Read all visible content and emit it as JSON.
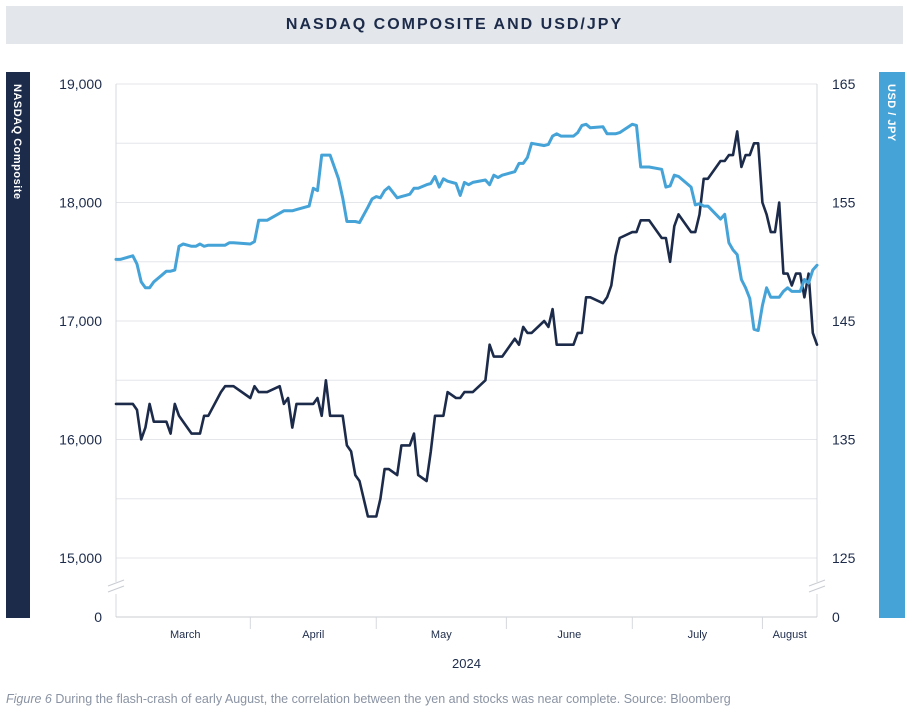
{
  "chart_data": {
    "type": "line",
    "title": "NASDAQ COMPOSITE AND USD/JPY",
    "xlabel": "2024",
    "months": [
      "March",
      "April",
      "May",
      "June",
      "July",
      "August"
    ],
    "y_left": {
      "label": "NASDAQ Composite",
      "range": [
        15000,
        19000
      ],
      "ticks": [
        "19,000",
        "18,000",
        "17,000",
        "16,000",
        "15,000"
      ],
      "tick_values": [
        19000,
        18000,
        17000,
        16000,
        15000
      ],
      "zero_label": "0",
      "axis_break": true
    },
    "y_right": {
      "label": "USD / JPY",
      "range": [
        125,
        165
      ],
      "ticks": [
        "165",
        "155",
        "145",
        "135",
        "125"
      ],
      "tick_values": [
        165,
        155,
        145,
        135,
        125
      ],
      "zero_label": "0",
      "axis_break": true
    },
    "x_range": [
      "2024-02-29",
      "2024-08-14"
    ],
    "grid": true,
    "series": [
      {
        "name": "NASDAQ Composite",
        "axis": "left",
        "color": "#1d2b4a",
        "points": [
          [
            "2024-02-29",
            16300
          ],
          [
            "2024-03-01",
            16300
          ],
          [
            "2024-03-04",
            16300
          ],
          [
            "2024-03-05",
            16250
          ],
          [
            "2024-03-06",
            16000
          ],
          [
            "2024-03-07",
            16100
          ],
          [
            "2024-03-08",
            16300
          ],
          [
            "2024-03-09",
            16150
          ],
          [
            "2024-03-11",
            16150
          ],
          [
            "2024-03-12",
            16150
          ],
          [
            "2024-03-13",
            16050
          ],
          [
            "2024-03-14",
            16300
          ],
          [
            "2024-03-15",
            16200
          ],
          [
            "2024-03-16",
            16150
          ],
          [
            "2024-03-18",
            16050
          ],
          [
            "2024-03-19",
            16050
          ],
          [
            "2024-03-20",
            16050
          ],
          [
            "2024-03-21",
            16200
          ],
          [
            "2024-03-22",
            16200
          ],
          [
            "2024-03-25",
            16400
          ],
          [
            "2024-03-26",
            16450
          ],
          [
            "2024-03-27",
            16450
          ],
          [
            "2024-03-28",
            16450
          ],
          [
            "2024-04-01",
            16350
          ],
          [
            "2024-04-02",
            16450
          ],
          [
            "2024-04-03",
            16400
          ],
          [
            "2024-04-04",
            16400
          ],
          [
            "2024-04-05",
            16400
          ],
          [
            "2024-04-08",
            16450
          ],
          [
            "2024-04-09",
            16300
          ],
          [
            "2024-04-10",
            16350
          ],
          [
            "2024-04-11",
            16100
          ],
          [
            "2024-04-12",
            16300
          ],
          [
            "2024-04-15",
            16300
          ],
          [
            "2024-04-16",
            16300
          ],
          [
            "2024-04-17",
            16350
          ],
          [
            "2024-04-18",
            16200
          ],
          [
            "2024-04-19",
            16500
          ],
          [
            "2024-04-20",
            16200
          ],
          [
            "2024-04-22",
            16200
          ],
          [
            "2024-04-23",
            16200
          ],
          [
            "2024-04-24",
            15950
          ],
          [
            "2024-04-25",
            15900
          ],
          [
            "2024-04-26",
            15700
          ],
          [
            "2024-04-27",
            15650
          ],
          [
            "2024-04-29",
            15350
          ],
          [
            "2024-04-30",
            15350
          ],
          [
            "2024-05-01",
            15350
          ],
          [
            "2024-05-02",
            15500
          ],
          [
            "2024-05-03",
            15750
          ],
          [
            "2024-05-04",
            15750
          ],
          [
            "2024-05-06",
            15700
          ],
          [
            "2024-05-07",
            15950
          ],
          [
            "2024-05-08",
            15950
          ],
          [
            "2024-05-09",
            15950
          ],
          [
            "2024-05-10",
            16050
          ],
          [
            "2024-05-11",
            15700
          ],
          [
            "2024-05-13",
            15650
          ],
          [
            "2024-05-14",
            15900
          ],
          [
            "2024-05-15",
            16200
          ],
          [
            "2024-05-16",
            16200
          ],
          [
            "2024-05-17",
            16200
          ],
          [
            "2024-05-18",
            16400
          ],
          [
            "2024-05-20",
            16350
          ],
          [
            "2024-05-21",
            16350
          ],
          [
            "2024-05-22",
            16400
          ],
          [
            "2024-05-23",
            16400
          ],
          [
            "2024-05-24",
            16400
          ],
          [
            "2024-05-27",
            16500
          ],
          [
            "2024-05-28",
            16800
          ],
          [
            "2024-05-29",
            16700
          ],
          [
            "2024-05-30",
            16700
          ],
          [
            "2024-05-31",
            16700
          ],
          [
            "2024-06-03",
            16850
          ],
          [
            "2024-06-04",
            16800
          ],
          [
            "2024-06-05",
            16950
          ],
          [
            "2024-06-06",
            16900
          ],
          [
            "2024-06-07",
            16900
          ],
          [
            "2024-06-10",
            17000
          ],
          [
            "2024-06-11",
            16950
          ],
          [
            "2024-06-12",
            17100
          ],
          [
            "2024-06-13",
            16800
          ],
          [
            "2024-06-14",
            16800
          ],
          [
            "2024-06-17",
            16800
          ],
          [
            "2024-06-18",
            16900
          ],
          [
            "2024-06-19",
            16900
          ],
          [
            "2024-06-20",
            17200
          ],
          [
            "2024-06-21",
            17200
          ],
          [
            "2024-06-24",
            17150
          ],
          [
            "2024-06-25",
            17200
          ],
          [
            "2024-06-26",
            17300
          ],
          [
            "2024-06-27",
            17550
          ],
          [
            "2024-06-28",
            17700
          ],
          [
            "2024-07-01",
            17750
          ],
          [
            "2024-07-02",
            17750
          ],
          [
            "2024-07-03",
            17850
          ],
          [
            "2024-07-05",
            17850
          ],
          [
            "2024-07-08",
            17700
          ],
          [
            "2024-07-09",
            17700
          ],
          [
            "2024-07-10",
            17500
          ],
          [
            "2024-07-11",
            17800
          ],
          [
            "2024-07-12",
            17900
          ],
          [
            "2024-07-15",
            17750
          ],
          [
            "2024-07-16",
            17750
          ],
          [
            "2024-07-17",
            17900
          ],
          [
            "2024-07-18",
            18200
          ],
          [
            "2024-07-19",
            18200
          ],
          [
            "2024-07-22",
            18350
          ],
          [
            "2024-07-23",
            18350
          ],
          [
            "2024-07-24",
            18400
          ],
          [
            "2024-07-25",
            18400
          ],
          [
            "2024-07-26",
            18600
          ],
          [
            "2024-07-27",
            18300
          ],
          [
            "2024-07-28",
            18400
          ],
          [
            "2024-07-29",
            18400
          ],
          [
            "2024-07-30",
            18500
          ],
          [
            "2024-07-31",
            18500
          ],
          [
            "2024-08-01",
            18000
          ],
          [
            "2024-08-02",
            17900
          ],
          [
            "2024-08-03",
            17750
          ],
          [
            "2024-08-04",
            17750
          ],
          [
            "2024-08-05",
            18000
          ],
          [
            "2024-08-06",
            17400
          ],
          [
            "2024-08-07",
            17400
          ],
          [
            "2024-08-08",
            17300
          ],
          [
            "2024-08-09",
            17400
          ],
          [
            "2024-08-10",
            17400
          ],
          [
            "2024-08-11",
            17200
          ],
          [
            "2024-08-12",
            17400
          ],
          [
            "2024-08-13",
            16900
          ],
          [
            "2024-08-14",
            16800
          ]
        ]
      },
      {
        "name": "USD / JPY",
        "axis": "right",
        "color": "#45a3d8",
        "points": [
          [
            "2024-02-29",
            150.2
          ],
          [
            "2024-03-01",
            150.2
          ],
          [
            "2024-03-04",
            150.5
          ],
          [
            "2024-03-05",
            149.8
          ],
          [
            "2024-03-06",
            148.3
          ],
          [
            "2024-03-07",
            147.8
          ],
          [
            "2024-03-08",
            147.8
          ],
          [
            "2024-03-09",
            148.3
          ],
          [
            "2024-03-11",
            148.9
          ],
          [
            "2024-03-12",
            149.2
          ],
          [
            "2024-03-13",
            149.2
          ],
          [
            "2024-03-14",
            149.3
          ],
          [
            "2024-03-15",
            151.3
          ],
          [
            "2024-03-16",
            151.5
          ],
          [
            "2024-03-18",
            151.3
          ],
          [
            "2024-03-19",
            151.3
          ],
          [
            "2024-03-20",
            151.5
          ],
          [
            "2024-03-21",
            151.3
          ],
          [
            "2024-03-22",
            151.4
          ],
          [
            "2024-03-25",
            151.4
          ],
          [
            "2024-03-26",
            151.4
          ],
          [
            "2024-03-27",
            151.6
          ],
          [
            "2024-03-28",
            151.6
          ],
          [
            "2024-04-01",
            151.5
          ],
          [
            "2024-04-02",
            151.7
          ],
          [
            "2024-04-03",
            153.5
          ],
          [
            "2024-04-04",
            153.5
          ],
          [
            "2024-04-05",
            153.5
          ],
          [
            "2024-04-08",
            154.1
          ],
          [
            "2024-04-09",
            154.3
          ],
          [
            "2024-04-10",
            154.3
          ],
          [
            "2024-04-11",
            154.3
          ],
          [
            "2024-04-12",
            154.4
          ],
          [
            "2024-04-15",
            154.7
          ],
          [
            "2024-04-16",
            156.2
          ],
          [
            "2024-04-17",
            156.0
          ],
          [
            "2024-04-18",
            159.0
          ],
          [
            "2024-04-19",
            159.0
          ],
          [
            "2024-04-20",
            159.0
          ],
          [
            "2024-04-22",
            157.0
          ],
          [
            "2024-04-23",
            155.4
          ],
          [
            "2024-04-24",
            153.4
          ],
          [
            "2024-04-25",
            153.4
          ],
          [
            "2024-04-26",
            153.4
          ],
          [
            "2024-04-27",
            153.3
          ],
          [
            "2024-04-29",
            154.6
          ],
          [
            "2024-04-30",
            155.3
          ],
          [
            "2024-05-01",
            155.5
          ],
          [
            "2024-05-02",
            155.4
          ],
          [
            "2024-05-03",
            156.0
          ],
          [
            "2024-05-04",
            156.3
          ],
          [
            "2024-05-06",
            155.4
          ],
          [
            "2024-05-07",
            155.5
          ],
          [
            "2024-05-08",
            155.6
          ],
          [
            "2024-05-09",
            155.7
          ],
          [
            "2024-05-10",
            156.2
          ],
          [
            "2024-05-11",
            156.2
          ],
          [
            "2024-05-13",
            156.5
          ],
          [
            "2024-05-14",
            156.6
          ],
          [
            "2024-05-15",
            157.2
          ],
          [
            "2024-05-16",
            156.3
          ],
          [
            "2024-05-17",
            157.0
          ],
          [
            "2024-05-18",
            156.8
          ],
          [
            "2024-05-20",
            156.6
          ],
          [
            "2024-05-21",
            155.6
          ],
          [
            "2024-05-22",
            156.7
          ],
          [
            "2024-05-23",
            156.5
          ],
          [
            "2024-05-24",
            156.7
          ],
          [
            "2024-05-27",
            156.9
          ],
          [
            "2024-05-28",
            156.5
          ],
          [
            "2024-05-29",
            157.3
          ],
          [
            "2024-05-30",
            157.1
          ],
          [
            "2024-05-31",
            157.3
          ],
          [
            "2024-06-03",
            157.6
          ],
          [
            "2024-06-04",
            158.3
          ],
          [
            "2024-06-05",
            158.3
          ],
          [
            "2024-06-06",
            158.8
          ],
          [
            "2024-06-07",
            160.0
          ],
          [
            "2024-06-10",
            159.8
          ],
          [
            "2024-06-11",
            159.9
          ],
          [
            "2024-06-12",
            160.6
          ],
          [
            "2024-06-13",
            160.8
          ],
          [
            "2024-06-14",
            160.6
          ],
          [
            "2024-06-17",
            160.6
          ],
          [
            "2024-06-18",
            160.9
          ],
          [
            "2024-06-19",
            161.5
          ],
          [
            "2024-06-20",
            161.6
          ],
          [
            "2024-06-21",
            161.3
          ],
          [
            "2024-06-24",
            161.4
          ],
          [
            "2024-06-25",
            160.8
          ],
          [
            "2024-06-26",
            160.8
          ],
          [
            "2024-06-27",
            160.8
          ],
          [
            "2024-06-28",
            160.9
          ],
          [
            "2024-07-01",
            161.6
          ],
          [
            "2024-07-02",
            161.5
          ],
          [
            "2024-07-03",
            158.0
          ],
          [
            "2024-07-05",
            158.0
          ],
          [
            "2024-07-08",
            157.8
          ],
          [
            "2024-07-09",
            156.3
          ],
          [
            "2024-07-10",
            156.4
          ],
          [
            "2024-07-11",
            157.3
          ],
          [
            "2024-07-12",
            157.2
          ],
          [
            "2024-07-15",
            156.3
          ],
          [
            "2024-07-16",
            154.8
          ],
          [
            "2024-07-17",
            154.9
          ],
          [
            "2024-07-18",
            154.7
          ],
          [
            "2024-07-19",
            154.7
          ],
          [
            "2024-07-22",
            153.6
          ],
          [
            "2024-07-23",
            154.0
          ],
          [
            "2024-07-24",
            151.6
          ],
          [
            "2024-07-25",
            151.0
          ],
          [
            "2024-07-26",
            150.6
          ],
          [
            "2024-07-27",
            148.5
          ],
          [
            "2024-07-28",
            147.8
          ],
          [
            "2024-07-29",
            146.9
          ],
          [
            "2024-07-30",
            144.3
          ],
          [
            "2024-07-31",
            144.2
          ],
          [
            "2024-08-01",
            146.3
          ],
          [
            "2024-08-02",
            147.8
          ],
          [
            "2024-08-03",
            147.0
          ],
          [
            "2024-08-04",
            147.0
          ],
          [
            "2024-08-05",
            147.0
          ],
          [
            "2024-08-06",
            147.5
          ],
          [
            "2024-08-07",
            147.8
          ],
          [
            "2024-08-08",
            147.5
          ],
          [
            "2024-08-09",
            147.5
          ],
          [
            "2024-08-10",
            147.5
          ],
          [
            "2024-08-11",
            148.5
          ],
          [
            "2024-08-12",
            148.2
          ],
          [
            "2024-08-13",
            149.3
          ],
          [
            "2024-08-14",
            149.7
          ]
        ]
      }
    ]
  },
  "caption": {
    "figure_label": "Figure 6",
    "text": " During the flash-crash of early August, the correlation between the yen and stocks was near complete. Source: Bloomberg"
  }
}
